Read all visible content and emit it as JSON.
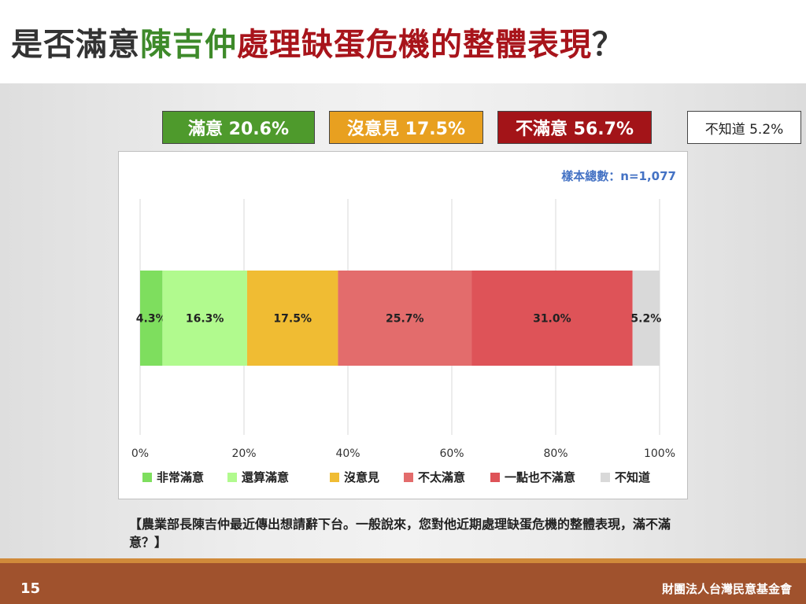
{
  "title": {
    "part1": "是否滿意",
    "part2": "陳吉仲",
    "part3": "處理缺蛋危機的整體表現",
    "part4": "？"
  },
  "colors": {
    "title_dark": "#333333",
    "title_green": "#3e8a2a",
    "title_red": "#a8141b"
  },
  "summary": [
    {
      "label": "滿意 20.6%",
      "bg": "#4e9a2c",
      "fg": "#ffffff"
    },
    {
      "label": "沒意見 17.5%",
      "bg": "#e8a020",
      "fg": "#ffffff"
    },
    {
      "label": "不滿意 56.7%",
      "bg": "#a31418",
      "fg": "#ffffff"
    },
    {
      "label": "不知道 5.2%",
      "bg": "#ffffff",
      "fg": "#222222"
    }
  ],
  "sample_note": "樣本總數：n=1,077",
  "question": "【農業部長陳吉仲最近傳出想請辭下台。一般說來，您對他近期處理缺蛋危機的整體表現，滿不滿意？】",
  "footer": {
    "page_number": "15",
    "org_name": "財團法人台灣民意基金會"
  },
  "chart_data": {
    "type": "bar",
    "orientation": "horizontal",
    "stacked": true,
    "xlim": [
      0,
      100
    ],
    "x_ticks": [
      "0%",
      "20%",
      "40%",
      "60%",
      "80%",
      "100%"
    ],
    "grid": true,
    "legend_position": "bottom",
    "series": [
      {
        "name": "非常滿意",
        "value": 4.3,
        "label": "4.3%",
        "color": "#7ede5e"
      },
      {
        "name": "還算滿意",
        "value": 16.3,
        "label": "16.3%",
        "color": "#b1fa8e"
      },
      {
        "name": "沒意見",
        "value": 17.5,
        "label": "17.5%",
        "color": "#f0bc33"
      },
      {
        "name": "不太滿意",
        "value": 25.7,
        "label": "25.7%",
        "color": "#e36c6c"
      },
      {
        "name": "一點也不滿意",
        "value": 31.0,
        "label": "31.0%",
        "color": "#de5358"
      },
      {
        "name": "不知道",
        "value": 5.2,
        "label": "5.2%",
        "color": "#d9d9d9"
      }
    ]
  }
}
